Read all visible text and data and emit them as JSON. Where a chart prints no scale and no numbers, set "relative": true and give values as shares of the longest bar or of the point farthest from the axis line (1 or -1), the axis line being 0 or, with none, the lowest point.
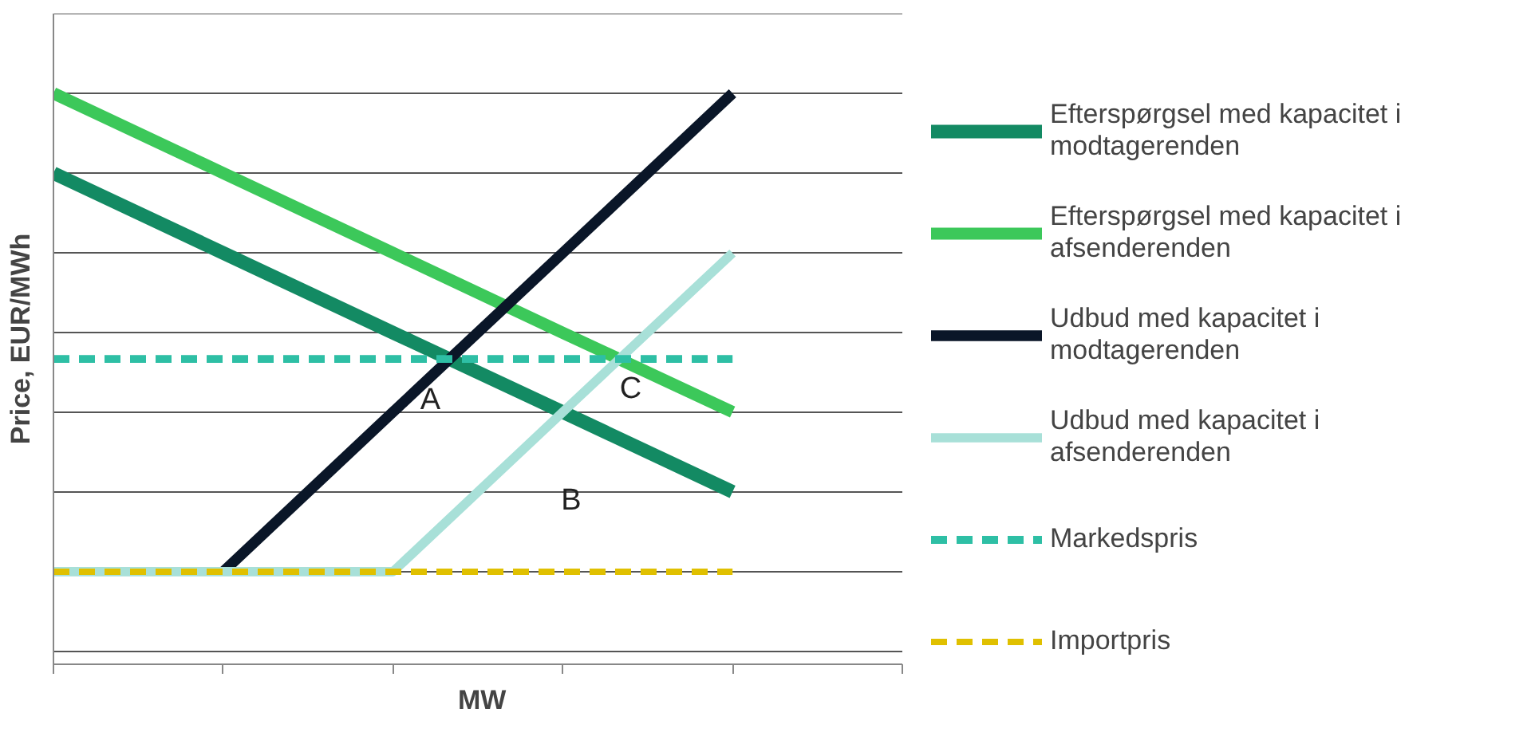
{
  "chart_data": {
    "type": "line",
    "relative": true,
    "ylabel": "Price, EUR/MWh",
    "xlabel": "MW",
    "categories": [
      null,
      null,
      null,
      null,
      null,
      null
    ],
    "series": [
      {
        "name": "Efterspørgsel med kapacitet i modtagerenden",
        "color": "#138a63",
        "values": [
          0.857,
          0.714,
          0.571,
          0.429,
          0.286,
          null
        ]
      },
      {
        "name": "Efterspørgsel med kapacitet i afsenderenden",
        "color": "#3cc85a",
        "values": [
          1,
          0.857,
          0.714,
          0.571,
          0.429,
          null
        ]
      },
      {
        "name": "Udbud med kapacitet i modtagerenden",
        "color": "#0a1628",
        "values": [
          null,
          0.143,
          0.429,
          0.714,
          1,
          null
        ]
      },
      {
        "name": "Udbud med kapacitet i afsenderenden",
        "color": "#a8e0d8",
        "values": [
          0.143,
          0.143,
          0.143,
          0.429,
          0.714,
          null
        ]
      },
      {
        "name": "Markedspris",
        "color": "#2ebfa5",
        "line_style": "dashed",
        "values": [
          0.524,
          0.524,
          0.524,
          0.524,
          0.524,
          null
        ]
      },
      {
        "name": "Importpris",
        "color": "#e0c000",
        "line_style": "dashed",
        "values": [
          0.143,
          0.143,
          0.143,
          0.143,
          0.143,
          null
        ]
      }
    ],
    "annotations": [
      "A",
      "B",
      "C"
    ],
    "grid": "y",
    "legend": "right",
    "marker": "none"
  }
}
